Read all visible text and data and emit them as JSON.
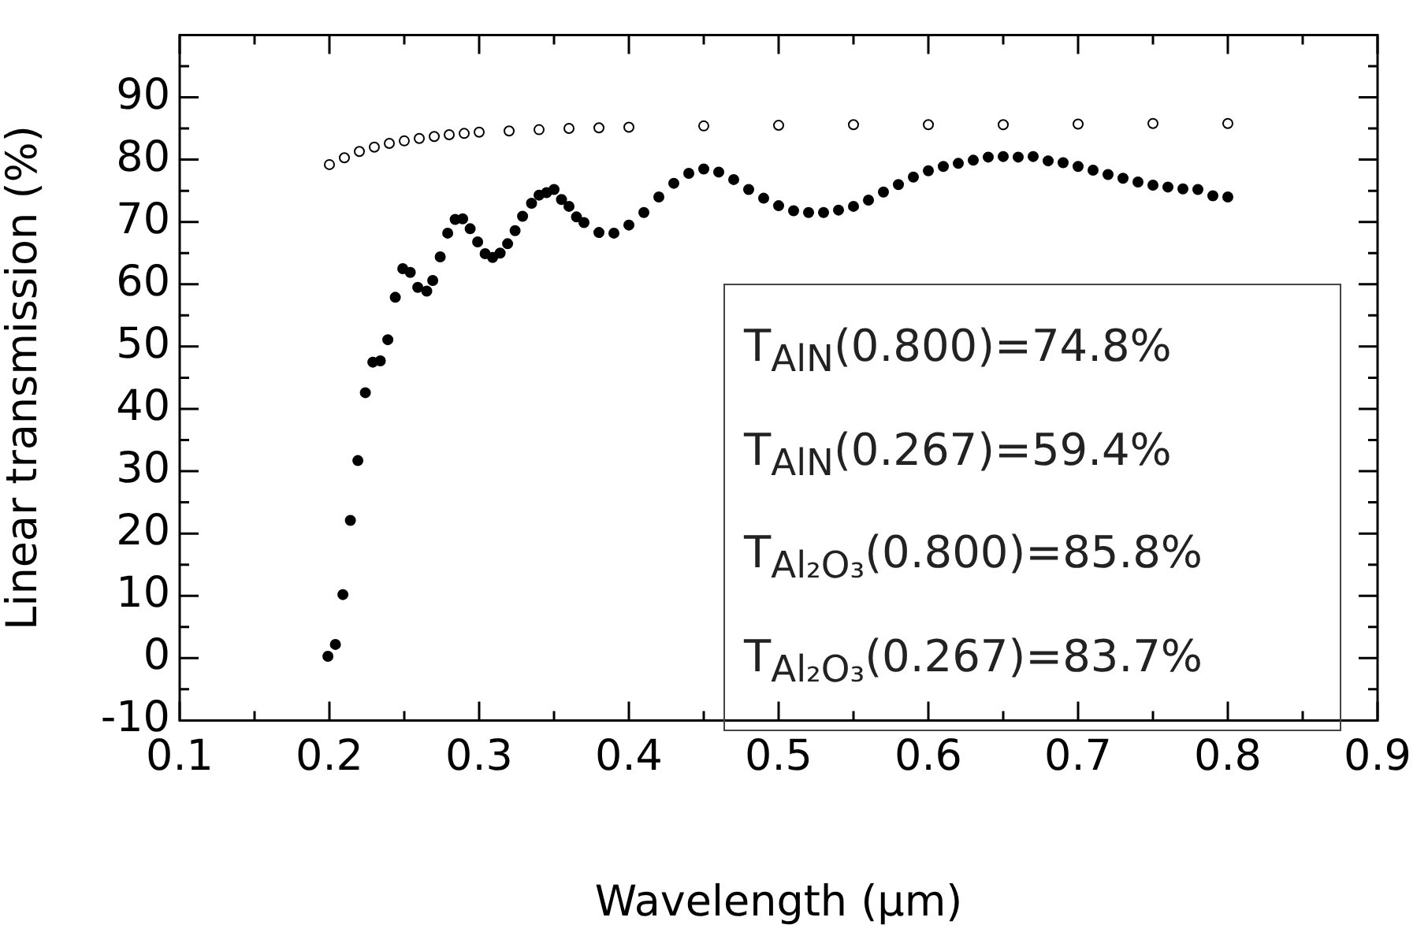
{
  "chart_data": {
    "type": "scatter",
    "xlabel": "Wavelength (μm)",
    "ylabel": "Linear transmission (%)",
    "xlim": [
      0.1,
      0.9
    ],
    "xticks": [
      0.1,
      0.2,
      0.3,
      0.4,
      0.5,
      0.6,
      0.7,
      0.8,
      0.9
    ],
    "ylim": [
      -10,
      100
    ],
    "yticks": [
      -10,
      0,
      10,
      20,
      30,
      40,
      50,
      60,
      70,
      80,
      90
    ],
    "grid": false,
    "legend": false,
    "marker": "circle",
    "annotations": [
      "T$_{AlN}$(0.800)=74.8%",
      "T$_{AlN}$(0.267)=59.4%",
      "T$_{Al₂O₃}$(0.800)=85.8%",
      "T$_{Al₂O₃}$(0.267)=83.7%"
    ],
    "series": [
      {
        "color": "#000000",
        "x": [
          0.199,
          0.204,
          0.209,
          0.214,
          0.219,
          0.224,
          0.229,
          0.234,
          0.239,
          0.244,
          0.249,
          0.254,
          0.259,
          0.265,
          0.269,
          0.274,
          0.279,
          0.284,
          0.289,
          0.294,
          0.299,
          0.304,
          0.309,
          0.314,
          0.319,
          0.324,
          0.329,
          0.335,
          0.34,
          0.345,
          0.35,
          0.355,
          0.36,
          0.365,
          0.37,
          0.38,
          0.39,
          0.4,
          0.41,
          0.42,
          0.43,
          0.44,
          0.45,
          0.46,
          0.47,
          0.48,
          0.49,
          0.5,
          0.51,
          0.52,
          0.53,
          0.54,
          0.55,
          0.56,
          0.57,
          0.58,
          0.59,
          0.6,
          0.61,
          0.62,
          0.63,
          0.64,
          0.65,
          0.66,
          0.67,
          0.68,
          0.69,
          0.7,
          0.71,
          0.72,
          0.73,
          0.74,
          0.75,
          0.76,
          0.77,
          0.78,
          0.79,
          0.8
        ],
        "values": [
          0.3,
          2.2,
          10.2,
          22.1,
          31.7,
          42.6,
          47.5,
          47.7,
          51.1,
          57.9,
          62.5,
          61.9,
          59.5,
          58.9,
          60.6,
          64.4,
          68.2,
          70.4,
          70.5,
          68.9,
          66.8,
          64.9,
          64.3,
          65.0,
          66.5,
          68.6,
          70.9,
          73.0,
          74.3,
          74.7,
          75.2,
          73.6,
          72.5,
          70.8,
          69.9,
          68.3,
          68.2,
          69.5,
          71.5,
          74.0,
          76.2,
          77.8,
          78.5,
          78.0,
          76.8,
          75.2,
          73.8,
          72.6,
          71.8,
          71.5,
          71.5,
          71.9,
          72.5,
          73.5,
          74.8,
          76.0,
          77.2,
          78.2,
          78.9,
          79.4,
          79.9,
          80.4,
          80.5,
          80.4,
          80.5,
          79.8,
          79.5,
          78.9,
          78.3,
          77.6,
          77.0,
          76.4,
          75.9,
          75.6,
          75.3,
          75.2,
          74.2,
          74.0
        ]
      },
      {
        "color": "#ffffff",
        "x": [
          0.2,
          0.21,
          0.22,
          0.23,
          0.24,
          0.25,
          0.26,
          0.27,
          0.28,
          0.29,
          0.3,
          0.32,
          0.34,
          0.36,
          0.38,
          0.4,
          0.45,
          0.5,
          0.55,
          0.6,
          0.65,
          0.7,
          0.75,
          0.8
        ],
        "values": [
          79.2,
          80.3,
          81.3,
          82.0,
          82.6,
          83.0,
          83.4,
          83.7,
          84.0,
          84.2,
          84.4,
          84.6,
          84.8,
          85.0,
          85.1,
          85.2,
          85.4,
          85.5,
          85.6,
          85.6,
          85.6,
          85.7,
          85.8,
          85.8
        ]
      }
    ]
  }
}
